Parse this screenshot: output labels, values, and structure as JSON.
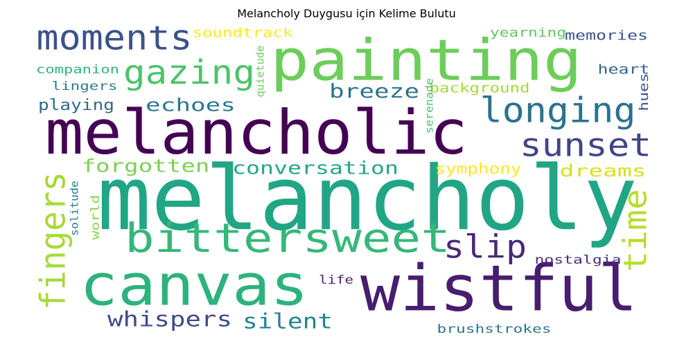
{
  "title": "Melancholy Duygusu için Kelime Bulutu",
  "palette": "viridis",
  "words": [
    {
      "text": "melancholy",
      "color": "#21a685"
    },
    {
      "text": "melancholic",
      "color": "#440154"
    },
    {
      "text": "painting",
      "color": "#6ccd5a"
    },
    {
      "text": "wistful",
      "color": "#481d6f"
    },
    {
      "text": "canvas",
      "color": "#2db27d"
    },
    {
      "text": "bittersweet",
      "color": "#35b779"
    },
    {
      "text": "moments",
      "color": "#3b528b"
    },
    {
      "text": "longing",
      "color": "#2c728e"
    },
    {
      "text": "gazing",
      "color": "#4ec36b"
    },
    {
      "text": "sunset",
      "color": "#414487"
    },
    {
      "text": "fingers",
      "color": "#a5db36"
    },
    {
      "text": "time",
      "color": "#b5de2b"
    },
    {
      "text": "slip",
      "color": "#482878"
    },
    {
      "text": "whispers",
      "color": "#3e4a89"
    },
    {
      "text": "silent",
      "color": "#26828e"
    },
    {
      "text": "breeze",
      "color": "#2c728e"
    },
    {
      "text": "echoes",
      "color": "#2a788e"
    },
    {
      "text": "playing",
      "color": "#31688e"
    },
    {
      "text": "forgotten",
      "color": "#7ad151"
    },
    {
      "text": "conversation",
      "color": "#22a884"
    },
    {
      "text": "symphony",
      "color": "#fde725"
    },
    {
      "text": "dreams",
      "color": "#d8e219"
    },
    {
      "text": "soundtrack",
      "color": "#fde725"
    },
    {
      "text": "memories",
      "color": "#3b528b"
    },
    {
      "text": "heart",
      "color": "#33638d"
    },
    {
      "text": "yearning",
      "color": "#5ec962"
    },
    {
      "text": "companion",
      "color": "#2fb47c"
    },
    {
      "text": "lingers",
      "color": "#2a788e"
    },
    {
      "text": "background",
      "color": "#9fda3a"
    },
    {
      "text": "quietude",
      "color": "#6ccd5a"
    },
    {
      "text": "serenade",
      "color": "#4ac16d"
    },
    {
      "text": "hues",
      "color": "#3b528b"
    },
    {
      "text": "solitude",
      "color": "#287c8e"
    },
    {
      "text": "world",
      "color": "#84d44b"
    },
    {
      "text": "nostalgia",
      "color": "#472d7b"
    },
    {
      "text": "life",
      "color": "#482475"
    },
    {
      "text": "brushstrokes",
      "color": "#2c728e"
    }
  ]
}
